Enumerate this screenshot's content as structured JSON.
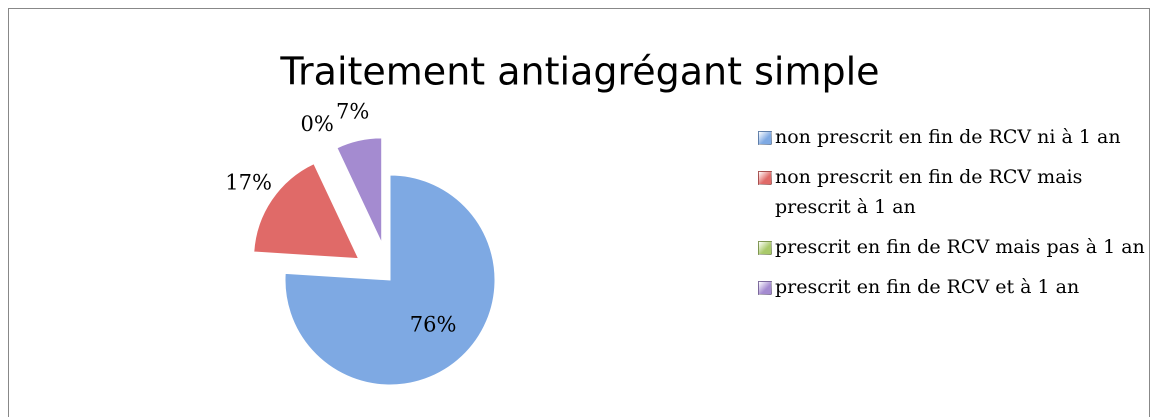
{
  "chart_data": {
    "type": "pie",
    "title": "Traitement antiagrégant simple",
    "categories": [
      "non prescrit en fin de RCV ni à 1 an",
      "non prescrit en fin de RCV mais prescrit à 1 an",
      "prescrit en fin de RCV mais pas à 1 an",
      "prescrit en fin de RCV et à 1 an"
    ],
    "values": [
      76,
      17,
      0,
      7
    ],
    "value_labels": [
      "76%",
      "17%",
      "0%",
      "7%"
    ],
    "colors": [
      "#7ea9e3",
      "#e06a68",
      "#a9c96a",
      "#a48bd0"
    ],
    "exploded": [
      false,
      true,
      true,
      true
    ],
    "legend": "right"
  }
}
